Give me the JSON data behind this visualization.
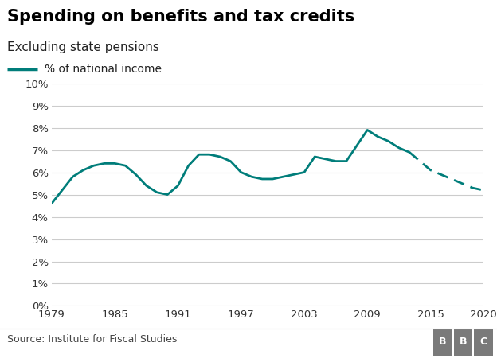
{
  "title": "Spending on benefits and tax credits",
  "subtitle": "Excluding state pensions",
  "legend_label": "% of national income",
  "source": "Source: Institute for Fiscal Studies",
  "line_color": "#007d7a",
  "background_color": "#ffffff",
  "title_fontsize": 15,
  "subtitle_fontsize": 11,
  "solid_years": [
    1979,
    1980,
    1981,
    1982,
    1983,
    1984,
    1985,
    1986,
    1987,
    1988,
    1989,
    1990,
    1991,
    1992,
    1993,
    1994,
    1995,
    1996,
    1997,
    1998,
    1999,
    2000,
    2001,
    2002,
    2003,
    2004,
    2005,
    2006,
    2007,
    2008,
    2009,
    2010,
    2011,
    2012,
    2013
  ],
  "solid_values": [
    4.6,
    5.2,
    5.8,
    6.1,
    6.3,
    6.4,
    6.4,
    6.3,
    5.9,
    5.4,
    5.1,
    5.0,
    5.4,
    6.3,
    6.8,
    6.8,
    6.7,
    6.5,
    6.0,
    5.8,
    5.7,
    5.7,
    5.8,
    5.9,
    6.0,
    6.7,
    6.6,
    6.5,
    6.5,
    7.2,
    7.9,
    7.6,
    7.4,
    7.1,
    6.9
  ],
  "dashed_years": [
    2013,
    2014,
    2015,
    2016,
    2017,
    2018,
    2019,
    2020
  ],
  "dashed_values": [
    6.9,
    6.5,
    6.1,
    5.9,
    5.7,
    5.5,
    5.3,
    5.2
  ],
  "xlim": [
    1979,
    2020
  ],
  "ylim": [
    0,
    10
  ],
  "xticks": [
    1979,
    1985,
    1991,
    1997,
    2003,
    2009,
    2015,
    2020
  ],
  "yticks": [
    0,
    1,
    2,
    3,
    4,
    5,
    6,
    7,
    8,
    9,
    10
  ],
  "grid_color": "#cccccc",
  "tick_label_fontsize": 9.5,
  "source_fontsize": 9,
  "bbc_box_color": "#7a7a7a",
  "separator_color": "#cccccc"
}
